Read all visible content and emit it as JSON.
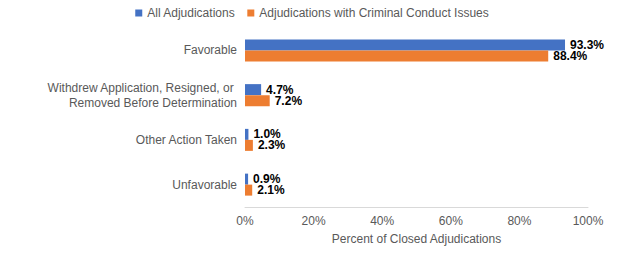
{
  "chart_data": {
    "type": "bar",
    "orientation": "horizontal",
    "categories": [
      "Favorable",
      "Withdrew Application, Resigned, or Removed Before Determination",
      "Other Action Taken",
      "Unfavorable"
    ],
    "series": [
      {
        "name": "All Adjudications",
        "color": "#4472c4",
        "values": [
          93.3,
          4.7,
          1.0,
          0.9
        ],
        "value_labels": [
          "93.3%",
          "4.7%",
          "1.0%",
          "0.9%"
        ]
      },
      {
        "name": "Adjudications with Criminal Conduct Issues",
        "color": "#ed7d31",
        "values": [
          88.4,
          7.2,
          2.3,
          2.1
        ],
        "value_labels": [
          "88.4%",
          "7.2%",
          "2.3%",
          "2.1%"
        ]
      }
    ],
    "x_label": "Percent of Closed Adjudications",
    "xlim": [
      0,
      100
    ],
    "xticks": [
      {
        "value": 0,
        "label": "0%"
      },
      {
        "value": 20,
        "label": "20%"
      },
      {
        "value": 40,
        "label": "40%"
      },
      {
        "value": 60,
        "label": "60%"
      },
      {
        "value": 80,
        "label": "80%"
      },
      {
        "value": 100,
        "label": "100%"
      }
    ],
    "grid": false,
    "legend": "top",
    "data_labels": true
  }
}
